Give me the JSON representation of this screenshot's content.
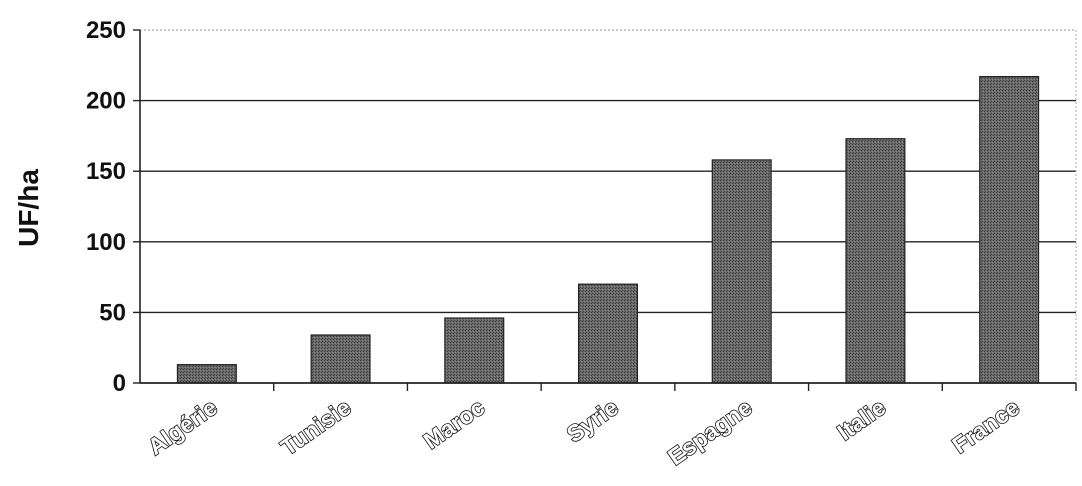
{
  "chart_data": {
    "type": "bar",
    "categories": [
      "Algérie",
      "Tunisie",
      "Maroc",
      "Syrie",
      "Espagne",
      "Italie",
      "France"
    ],
    "values": [
      13,
      34,
      46,
      70,
      158,
      173,
      217
    ],
    "title": "",
    "xlabel": "",
    "ylabel": "UF/ha",
    "ylim": [
      0,
      250
    ],
    "yticks": [
      0,
      50,
      100,
      150,
      200,
      250
    ],
    "grid": true,
    "legend": "none",
    "bar_color": "#5a5a5a"
  }
}
